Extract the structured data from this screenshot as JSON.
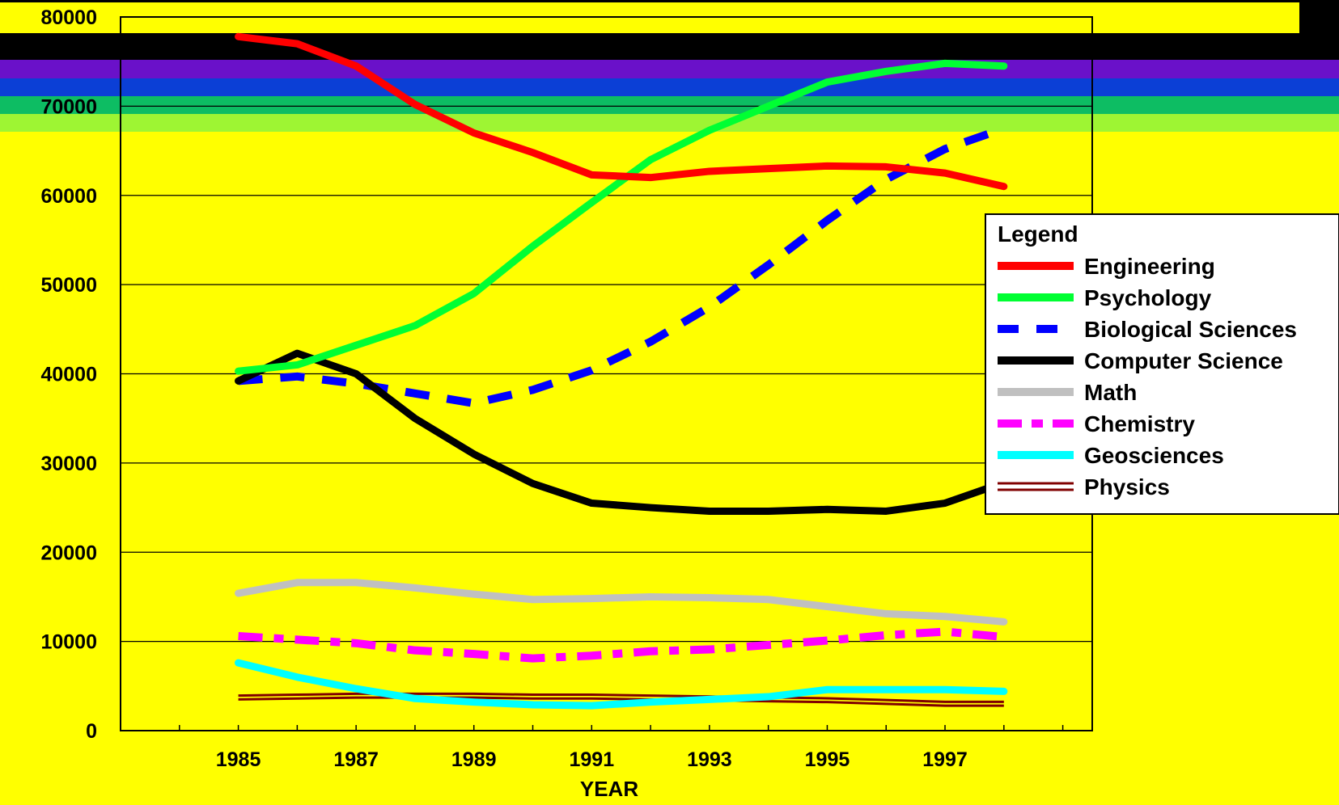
{
  "chart_data": {
    "type": "line",
    "title": "",
    "xlabel": "YEAR",
    "ylabel": "",
    "xlim": [
      1983,
      1999.5
    ],
    "ylim": [
      0,
      80000
    ],
    "x_ticks": [
      1985,
      1987,
      1989,
      1991,
      1993,
      1995,
      1997
    ],
    "y_ticks": [
      0,
      10000,
      20000,
      30000,
      40000,
      50000,
      60000,
      70000,
      80000
    ],
    "grid": true,
    "legend_title": "Legend",
    "legend_position": "right",
    "x": [
      1985,
      1986,
      1987,
      1988,
      1989,
      1990,
      1991,
      1992,
      1993,
      1994,
      1995,
      1996,
      1997,
      1998
    ],
    "series": [
      {
        "name": "Engineering",
        "color": "#ff0000",
        "style": "solid",
        "values": [
          77800,
          77000,
          74500,
          70200,
          67000,
          64800,
          62300,
          62000,
          62700,
          63000,
          63300,
          63200,
          62500,
          61000
        ]
      },
      {
        "name": "Psychology",
        "color": "#00ff33",
        "style": "solid",
        "values": [
          40300,
          41000,
          43200,
          45400,
          49000,
          54300,
          59200,
          64000,
          67300,
          70000,
          72700,
          73900,
          74800,
          74500
        ]
      },
      {
        "name": "Biological Sciences",
        "color": "#0000ff",
        "style": "dashed",
        "values": [
          39200,
          39700,
          38900,
          37800,
          36700,
          38200,
          40400,
          43600,
          47500,
          52200,
          57200,
          61800,
          65200,
          67500
        ]
      },
      {
        "name": "Computer Science",
        "color": "#000000",
        "style": "solid",
        "values": [
          39200,
          42300,
          40000,
          35000,
          31000,
          27700,
          25500,
          25000,
          24600,
          24600,
          24800,
          24600,
          25500,
          27800
        ]
      },
      {
        "name": "Math",
        "color": "#c0c0c0",
        "style": "solid",
        "values": [
          15400,
          16600,
          16600,
          16000,
          15300,
          14700,
          14800,
          15000,
          14900,
          14700,
          13900,
          13100,
          12800,
          12200
        ]
      },
      {
        "name": "Chemistry",
        "color": "#ff00ff",
        "style": "dashdot",
        "values": [
          10600,
          10200,
          9800,
          9000,
          8600,
          8100,
          8400,
          8900,
          9100,
          9600,
          10100,
          10700,
          11100,
          10500
        ]
      },
      {
        "name": "Geosciences",
        "color": "#00ffff",
        "style": "solid",
        "values": [
          7600,
          6000,
          4700,
          3600,
          3200,
          2900,
          2800,
          3200,
          3500,
          3800,
          4600,
          4600,
          4600,
          4400
        ]
      },
      {
        "name": "Physics",
        "color": "#800000",
        "style": "double",
        "values": [
          4200,
          4300,
          4400,
          4400,
          4400,
          4300,
          4300,
          4200,
          4100,
          4000,
          3900,
          3700,
          3500,
          3500
        ]
      }
    ]
  }
}
